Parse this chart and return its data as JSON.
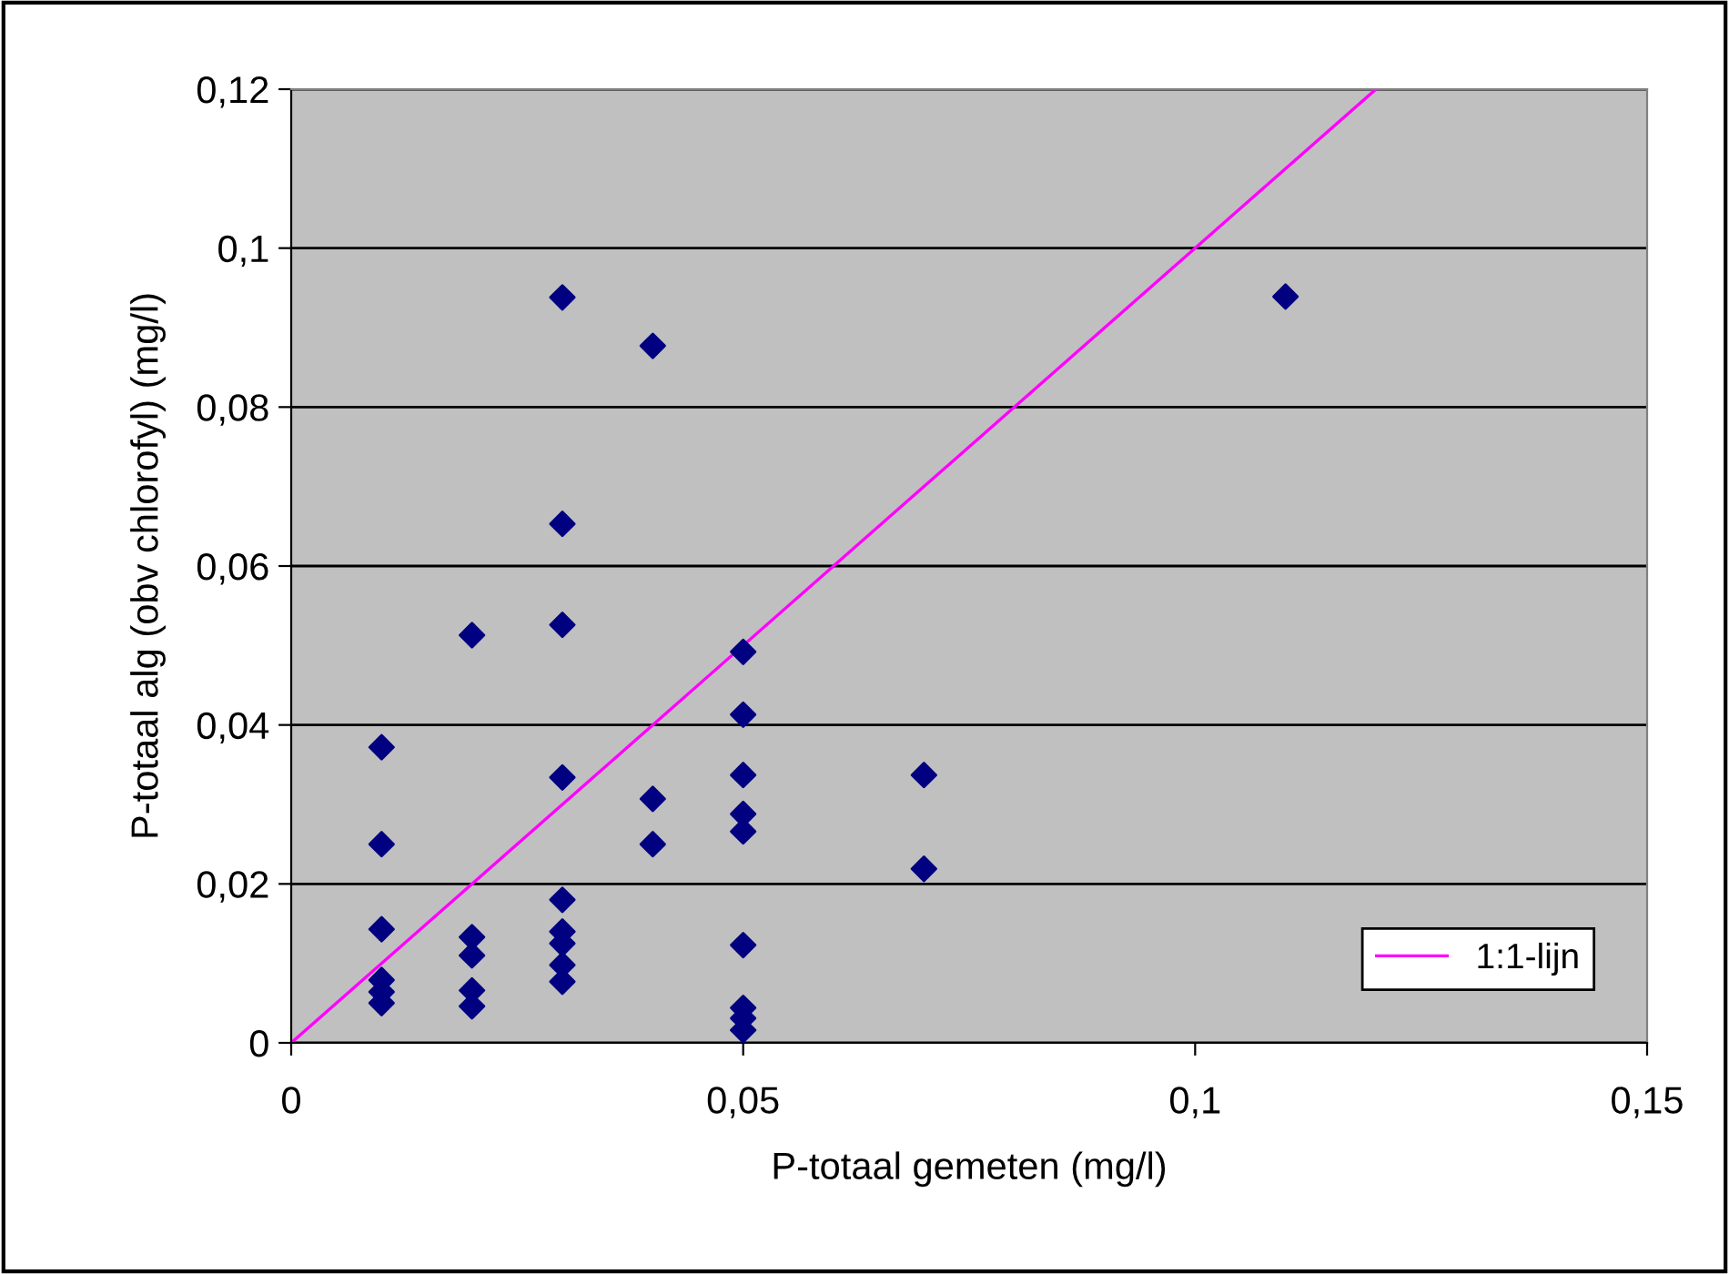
{
  "chart_data": {
    "type": "scatter",
    "xlabel": "P-totaal gemeten (mg/l)",
    "ylabel": "P-totaal alg (obv chlorofyl) (mg/l)",
    "series": [
      {
        "color": "#000080",
        "marker": "diamond",
        "x": [
          0.01,
          0.01,
          0.01,
          0.01,
          0.01,
          0.01,
          0.02,
          0.02,
          0.02,
          0.02,
          0.02,
          0.03,
          0.03,
          0.03,
          0.03,
          0.03,
          0.03,
          0.03,
          0.03,
          0.03,
          0.04,
          0.04,
          0.04,
          0.05,
          0.05,
          0.05,
          0.05,
          0.05,
          0.05,
          0.05,
          0.05,
          0.05,
          0.07,
          0.07,
          0.11
        ],
        "values": [
          0.0372,
          0.025,
          0.0143,
          0.0079,
          0.0064,
          0.005,
          0.0513,
          0.0133,
          0.011,
          0.0066,
          0.0046,
          0.0938,
          0.0653,
          0.0526,
          0.0334,
          0.018,
          0.014,
          0.0125,
          0.0098,
          0.0077,
          0.0877,
          0.0307,
          0.025,
          0.0492,
          0.0413,
          0.0337,
          0.0288,
          0.0266,
          0.0123,
          0.0044,
          0.0031,
          0.0016,
          0.0337,
          0.0219,
          0.0939
        ]
      },
      {
        "type": "line",
        "name": "1:1-lijn",
        "color": "#ff00ff",
        "marker": "none",
        "x": [
          0,
          0.12
        ],
        "values": [
          0,
          0.12
        ]
      }
    ],
    "xlim": [
      0,
      0.15
    ],
    "ylim": [
      0,
      0.12
    ],
    "xticks": [
      0,
      {
        "value": 0.05,
        "label": "0,05"
      },
      {
        "value": 0.1,
        "label": "0,1"
      },
      {
        "value": 0.15,
        "label": "0,15"
      }
    ],
    "yticks": [
      0,
      {
        "value": 0.02,
        "label": "0,02"
      },
      {
        "value": 0.04,
        "label": "0,04"
      },
      {
        "value": 0.06,
        "label": "0,06"
      },
      {
        "value": 0.08,
        "label": "0,08"
      },
      {
        "value": 0.1,
        "label": "0,1"
      },
      {
        "value": 0.12,
        "label": "0,12"
      }
    ],
    "grid": "y",
    "legend": "bottom right"
  }
}
